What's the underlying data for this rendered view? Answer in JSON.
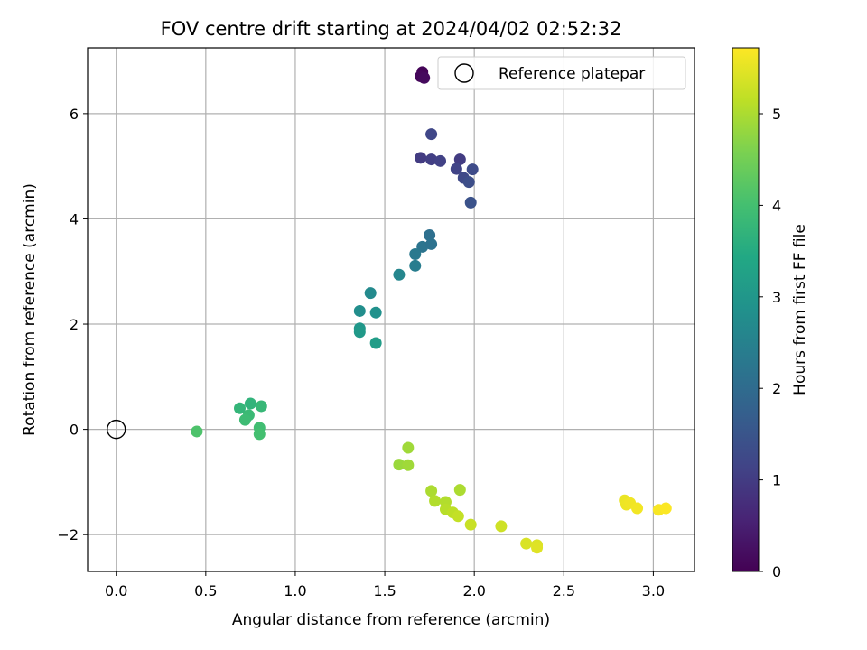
{
  "chart_data": {
    "type": "scatter",
    "title": "FOV centre drift starting at 2024/04/02 02:52:32",
    "xlabel": "Angular distance from reference (arcmin)",
    "ylabel": "Rotation from reference (arcmin)",
    "xlim": [
      -0.16,
      3.23
    ],
    "ylim": [
      -2.7,
      7.25
    ],
    "xticks": [
      0.0,
      0.5,
      1.0,
      1.5,
      2.0,
      2.5,
      3.0
    ],
    "xtick_labels": [
      "0.0",
      "0.5",
      "1.0",
      "1.5",
      "2.0",
      "2.5",
      "3.0"
    ],
    "yticks": [
      -2,
      0,
      2,
      4,
      6
    ],
    "ytick_labels": [
      "−2",
      "0",
      "2",
      "4",
      "6"
    ],
    "grid": true,
    "legend": {
      "placement": "top-right",
      "entries": [
        "Reference platepar"
      ]
    },
    "reference_point": {
      "x": 0.0,
      "y": 0.0,
      "name": "Reference platepar"
    },
    "colorbar": {
      "label": "Hours from first FF file",
      "range": [
        0,
        5.72
      ],
      "ticks": [
        0,
        1,
        2,
        3,
        4,
        5
      ],
      "tick_labels": [
        "0",
        "1",
        "2",
        "3",
        "4",
        "5"
      ],
      "colormap": "viridis"
    },
    "points": [
      {
        "x": 1.71,
        "y": 6.79,
        "t": 0.05
      },
      {
        "x": 1.7,
        "y": 6.71,
        "t": 0.1
      },
      {
        "x": 1.72,
        "y": 6.68,
        "t": 0.15
      },
      {
        "x": 1.76,
        "y": 5.61,
        "t": 1.2
      },
      {
        "x": 1.7,
        "y": 5.16,
        "t": 1.0
      },
      {
        "x": 1.76,
        "y": 5.13,
        "t": 1.05
      },
      {
        "x": 1.81,
        "y": 5.1,
        "t": 1.1
      },
      {
        "x": 1.92,
        "y": 5.13,
        "t": 1.0
      },
      {
        "x": 1.9,
        "y": 4.95,
        "t": 1.15
      },
      {
        "x": 1.94,
        "y": 4.78,
        "t": 1.25
      },
      {
        "x": 1.99,
        "y": 4.94,
        "t": 1.3
      },
      {
        "x": 1.97,
        "y": 4.7,
        "t": 1.35
      },
      {
        "x": 1.98,
        "y": 4.31,
        "t": 1.45
      },
      {
        "x": 1.75,
        "y": 3.69,
        "t": 2.1
      },
      {
        "x": 1.71,
        "y": 3.47,
        "t": 2.2
      },
      {
        "x": 1.76,
        "y": 3.52,
        "t": 2.15
      },
      {
        "x": 1.67,
        "y": 3.33,
        "t": 2.3
      },
      {
        "x": 1.67,
        "y": 3.11,
        "t": 2.4
      },
      {
        "x": 1.58,
        "y": 2.94,
        "t": 2.6
      },
      {
        "x": 1.42,
        "y": 2.59,
        "t": 2.7
      },
      {
        "x": 1.36,
        "y": 2.25,
        "t": 2.8
      },
      {
        "x": 1.45,
        "y": 2.22,
        "t": 2.85
      },
      {
        "x": 1.36,
        "y": 1.92,
        "t": 3.0
      },
      {
        "x": 1.36,
        "y": 1.85,
        "t": 3.05
      },
      {
        "x": 1.45,
        "y": 1.64,
        "t": 3.15
      },
      {
        "x": 0.75,
        "y": 0.49,
        "t": 3.7
      },
      {
        "x": 0.69,
        "y": 0.4,
        "t": 3.75
      },
      {
        "x": 0.81,
        "y": 0.44,
        "t": 3.8
      },
      {
        "x": 0.74,
        "y": 0.27,
        "t": 3.85
      },
      {
        "x": 0.72,
        "y": 0.18,
        "t": 3.9
      },
      {
        "x": 0.8,
        "y": 0.03,
        "t": 3.95
      },
      {
        "x": 0.8,
        "y": -0.09,
        "t": 4.0
      },
      {
        "x": 0.45,
        "y": -0.04,
        "t": 4.1
      },
      {
        "x": 1.63,
        "y": -0.35,
        "t": 4.9
      },
      {
        "x": 1.58,
        "y": -0.67,
        "t": 4.85
      },
      {
        "x": 1.63,
        "y": -0.68,
        "t": 4.9
      },
      {
        "x": 1.76,
        "y": -1.17,
        "t": 5.0
      },
      {
        "x": 1.92,
        "y": -1.15,
        "t": 5.0
      },
      {
        "x": 1.78,
        "y": -1.36,
        "t": 5.05
      },
      {
        "x": 1.84,
        "y": -1.38,
        "t": 5.05
      },
      {
        "x": 1.84,
        "y": -1.52,
        "t": 5.1
      },
      {
        "x": 1.88,
        "y": -1.58,
        "t": 5.15
      },
      {
        "x": 1.91,
        "y": -1.65,
        "t": 5.2
      },
      {
        "x": 1.98,
        "y": -1.81,
        "t": 5.25
      },
      {
        "x": 2.15,
        "y": -1.84,
        "t": 5.3
      },
      {
        "x": 2.29,
        "y": -2.17,
        "t": 5.4
      },
      {
        "x": 2.35,
        "y": -2.2,
        "t": 5.42
      },
      {
        "x": 2.35,
        "y": -2.25,
        "t": 5.45
      },
      {
        "x": 2.84,
        "y": -1.35,
        "t": 5.55
      },
      {
        "x": 2.85,
        "y": -1.43,
        "t": 5.58
      },
      {
        "x": 2.87,
        "y": -1.4,
        "t": 5.6
      },
      {
        "x": 2.91,
        "y": -1.5,
        "t": 5.62
      },
      {
        "x": 3.03,
        "y": -1.53,
        "t": 5.67
      },
      {
        "x": 3.07,
        "y": -1.5,
        "t": 5.7
      }
    ]
  }
}
